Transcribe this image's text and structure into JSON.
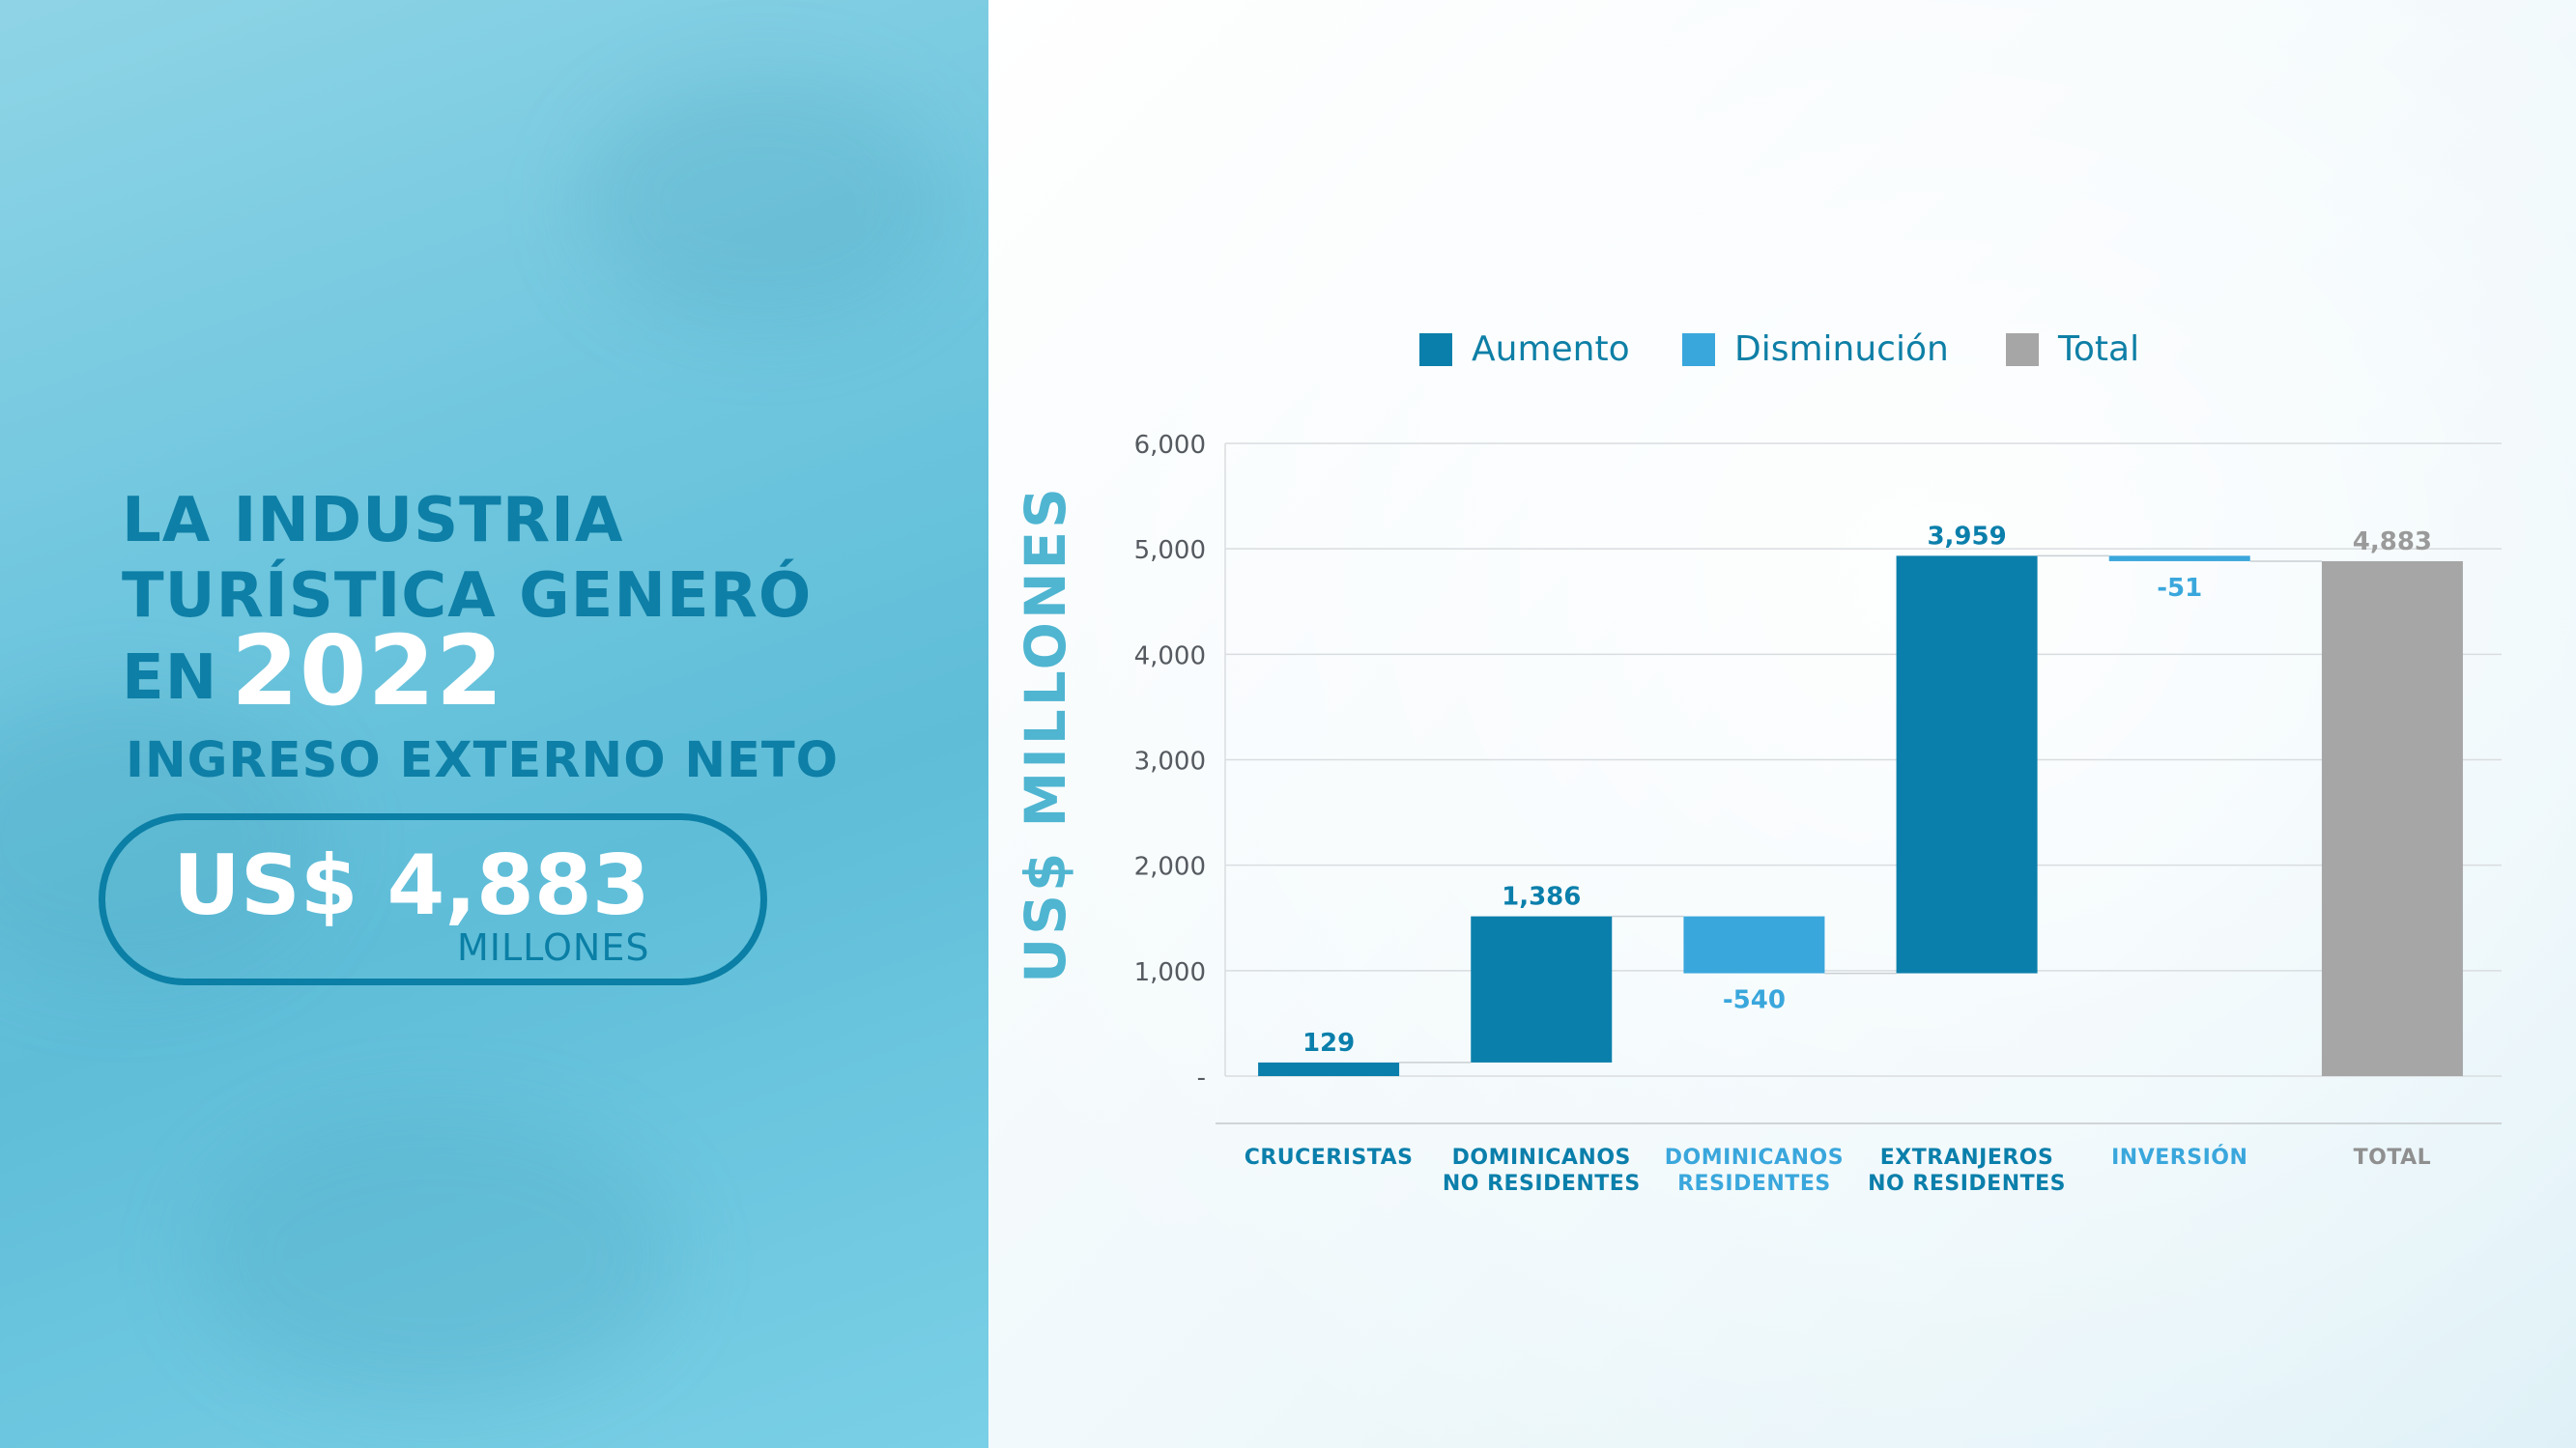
{
  "headline": {
    "line1": "LA INDUSTRIA",
    "line2": "TURÍSTICA GENERÓ",
    "line3": "EN",
    "year": "2022"
  },
  "subheadline": "INGRESO EXTERNO NETO",
  "highlight": {
    "amount": "US$ 4,883",
    "unit": "MILLONES"
  },
  "colors": {
    "increase": "#0b7fab",
    "decrease": "#3aa7dc",
    "total": "#a6a6a6",
    "title_teal": "#0e7fa6",
    "axis_title": "#4fb5d1"
  },
  "chart_data": {
    "type": "bar",
    "subtype": "waterfall",
    "legend": [
      "Aumento",
      "Disminución",
      "Total"
    ],
    "legend_placement": "top",
    "ylabel": "US$ MILLONES",
    "ylim": [
      0,
      6000
    ],
    "yticks": [
      0,
      1000,
      2000,
      3000,
      4000,
      5000,
      6000
    ],
    "ytick_labels": [
      "-",
      "1,000",
      "2,000",
      "3,000",
      "4,000",
      "5,000",
      "6,000"
    ],
    "grid": true,
    "categories": [
      [
        "CRUCERISTAS"
      ],
      [
        "DOMINICANOS",
        "NO RESIDENTES"
      ],
      [
        "DOMINICANOS",
        "RESIDENTES"
      ],
      [
        "EXTRANJEROS",
        "NO RESIDENTES"
      ],
      [
        "INVERSIÓN"
      ],
      [
        "TOTAL"
      ]
    ],
    "values": [
      129,
      1386,
      -540,
      3959,
      -51,
      4883
    ],
    "value_labels": [
      "129",
      "1,386",
      "-540",
      "3,959",
      "-51",
      "4,883"
    ],
    "kinds": [
      "increase",
      "increase",
      "decrease",
      "increase",
      "decrease",
      "total"
    ]
  }
}
